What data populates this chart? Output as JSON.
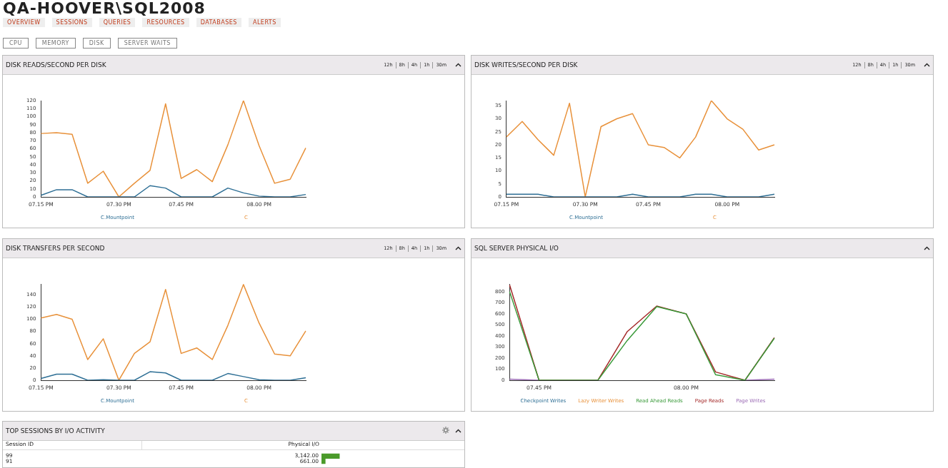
{
  "chart_data": [
    {
      "type": "other",
      "title": "QA-HOOVER\\SQL2008",
      "annotations": [
        "OVERVIEW",
        "SESSIONS",
        "QUERIES",
        "RESOURCES",
        "DATABASES",
        "ALERTS"
      ]
    },
    {
      "type": "other",
      "annotations": [
        "CPU",
        "MEMORY",
        "DISK",
        "SERVER WAITS"
      ]
    },
    {
      "type": "line",
      "title": "DISK READS/SECOND PER DISK",
      "annotations": [
        "12h",
        "8h",
        "4h",
        "1h",
        "30m"
      ],
      "categories": [
        "07.15 PM",
        null,
        null,
        null,
        null,
        "07.30 PM",
        null,
        null,
        null,
        "07.45 PM",
        null,
        null,
        null,
        null,
        "08.00 PM",
        null,
        null,
        null
      ],
      "ylim": [
        0,
        120
      ],
      "yticks": [
        0,
        10,
        20,
        30,
        40,
        50,
        60,
        70,
        80,
        90,
        100,
        110,
        120
      ],
      "legend": "bottom",
      "series": [
        {
          "name": "C.Mountpoint",
          "color": "#2e6f95",
          "values": [
            2,
            9,
            9,
            0,
            0,
            0,
            0,
            14,
            11,
            0,
            0,
            0,
            11,
            5,
            1,
            0,
            0,
            3
          ]
        },
        {
          "name": "C",
          "color": "#e8913a",
          "values": [
            79,
            80,
            78,
            17,
            32,
            0,
            17,
            33,
            116,
            23,
            34,
            19,
            65,
            120,
            64,
            17,
            22,
            61
          ]
        }
      ]
    },
    {
      "type": "line",
      "title": "DISK WRITES/SECOND PER DISK",
      "annotations": [
        "12h",
        "8h",
        "4h",
        "1h",
        "30m"
      ],
      "categories": [
        "07.15 PM",
        null,
        null,
        null,
        null,
        "07.30 PM",
        null,
        null,
        null,
        "07.45 PM",
        null,
        null,
        null,
        null,
        "08.00 PM",
        null,
        null,
        null
      ],
      "ylim": [
        0,
        37
      ],
      "yticks": [
        0,
        5,
        10,
        15,
        20,
        25,
        30,
        35
      ],
      "legend": "bottom",
      "series": [
        {
          "name": "C.Mountpoint",
          "color": "#2e6f95",
          "values": [
            1,
            1,
            1,
            0,
            0,
            0,
            0,
            0,
            1,
            0,
            0,
            0,
            1,
            1,
            0,
            0,
            0,
            1
          ]
        },
        {
          "name": "C",
          "color": "#e8913a",
          "values": [
            23,
            29,
            22,
            16,
            36,
            0,
            27,
            30,
            32,
            20,
            19,
            15,
            23,
            37,
            30,
            26,
            18,
            20
          ]
        }
      ]
    },
    {
      "type": "line",
      "title": "DISK TRANSFERS PER SECOND",
      "annotations": [
        "12h",
        "8h",
        "4h",
        "1h",
        "30m"
      ],
      "categories": [
        "07.15 PM",
        null,
        null,
        null,
        null,
        "07.30 PM",
        null,
        null,
        null,
        "07.45 PM",
        null,
        null,
        null,
        null,
        "08.00 PM",
        null,
        null,
        null
      ],
      "ylim": [
        0,
        158
      ],
      "yticks": [
        0,
        20,
        40,
        60,
        80,
        100,
        120,
        140
      ],
      "legend": "bottom",
      "series": [
        {
          "name": "C.Mountpoint",
          "color": "#2e6f95",
          "values": [
            3,
            10,
            10,
            0,
            1,
            0,
            0,
            14,
            12,
            0,
            0,
            0,
            11,
            6,
            1,
            0,
            0,
            4
          ]
        },
        {
          "name": "C",
          "color": "#e8913a",
          "values": [
            102,
            108,
            100,
            34,
            68,
            0,
            44,
            63,
            149,
            44,
            53,
            34,
            90,
            157,
            94,
            43,
            40,
            81
          ]
        }
      ]
    },
    {
      "type": "line",
      "title": "SQL SERVER PHYSICAL I/O",
      "categories": [
        null,
        "07.45 PM",
        null,
        null,
        null,
        null,
        "08.00 PM",
        null,
        null,
        null
      ],
      "ylim": [
        0,
        870
      ],
      "yticks": [
        0,
        100,
        200,
        300,
        400,
        500,
        600,
        700,
        800
      ],
      "legend": "bottom",
      "series": [
        {
          "name": "Checkpoint Writes",
          "color": "#2e6f95",
          "values": [
            null,
            null,
            null,
            null,
            null,
            null,
            null,
            null,
            null,
            null
          ]
        },
        {
          "name": "Lazy Writer Writes",
          "color": "#e8913a",
          "values": [
            null,
            null,
            null,
            null,
            null,
            null,
            null,
            null,
            null,
            null
          ]
        },
        {
          "name": "Read Ahead Reads",
          "color": "#3a9a3a",
          "values": [
            800,
            0,
            0,
            0,
            360,
            665,
            600,
            50,
            0,
            380
          ]
        },
        {
          "name": "Page Reads",
          "color": "#a52a2a",
          "values": [
            860,
            0,
            0,
            0,
            440,
            670,
            600,
            75,
            0,
            385
          ]
        },
        {
          "name": "Page Writes",
          "color": "#9b6bb5",
          "values": [
            10,
            0,
            null,
            null,
            null,
            null,
            null,
            null,
            0,
            10
          ]
        }
      ]
    },
    {
      "type": "bar",
      "orientation": "horizontal",
      "title": "TOP SESSIONS BY I/O ACTIVITY",
      "ylabel": "Session ID",
      "xlabel": "Physical I/O",
      "categories": [
        "99",
        "91"
      ],
      "values": [
        3142,
        661
      ],
      "value_labels": [
        "3,142.00",
        "661.00"
      ],
      "color": "#4a9a2a"
    }
  ]
}
